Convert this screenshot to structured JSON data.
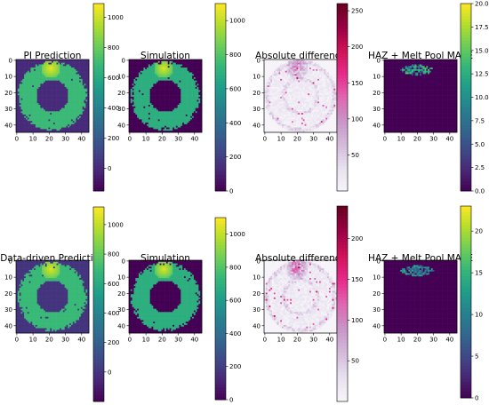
{
  "figure": {
    "rows": [
      {
        "panels": [
          {
            "title": "PI Prediction",
            "kind": "ring",
            "colorbar": {
              "cmap": "viridis",
              "min": -150,
              "max": 1090,
              "ticks": [
                0,
                200,
                400,
                600,
                800,
                1000
              ]
            }
          },
          {
            "title": "Simulation",
            "kind": "ring",
            "colorbar": {
              "cmap": "viridis",
              "min": 0,
              "max": 1100,
              "ticks": [
                0,
                200,
                400,
                600,
                800,
                1000
              ]
            }
          },
          {
            "title": "Absolute difference",
            "kind": "diff",
            "colorbar": {
              "cmap": "pubu_red",
              "min": 0,
              "max": 260,
              "ticks": [
                50,
                100,
                150,
                200,
                250
              ]
            }
          },
          {
            "title": "HAZ + Melt Pool MAPE",
            "kind": "mape",
            "colorbar": {
              "cmap": "viridis",
              "min": 0,
              "max": 20,
              "ticks": [
                0.0,
                2.5,
                5.0,
                7.5,
                10.0,
                12.5,
                15.0,
                17.5,
                20.0
              ]
            }
          }
        ]
      },
      {
        "panels": [
          {
            "title": "Data-driven Prediction",
            "kind": "ring",
            "colorbar": {
              "cmap": "viridis",
              "min": -200,
              "max": 1120,
              "ticks": [
                0,
                200,
                400,
                600,
                800,
                1000
              ]
            }
          },
          {
            "title": "Simulation",
            "kind": "ring",
            "colorbar": {
              "cmap": "viridis",
              "min": 0,
              "max": 1100,
              "ticks": [
                0,
                200,
                400,
                600,
                800,
                1000
              ]
            }
          },
          {
            "title": "Absolute difference",
            "kind": "diff",
            "colorbar": {
              "cmap": "pubu_red",
              "min": 0,
              "max": 240,
              "ticks": [
                50,
                100,
                150,
                200
              ]
            }
          },
          {
            "title": "HAZ + Melt Pool MAPE",
            "kind": "mape",
            "colorbar": {
              "cmap": "viridis",
              "min": 0,
              "max": 23,
              "ticks": [
                0,
                5,
                10,
                15,
                20
              ]
            }
          }
        ]
      }
    ]
  },
  "chart_data": {
    "type": "heatmap",
    "grid_size": 45,
    "axis_ticks": [
      0,
      10,
      20,
      30,
      40
    ],
    "note_values": "Ring body ~700, hot spot near top ~1050, hole/outside ~0"
  }
}
